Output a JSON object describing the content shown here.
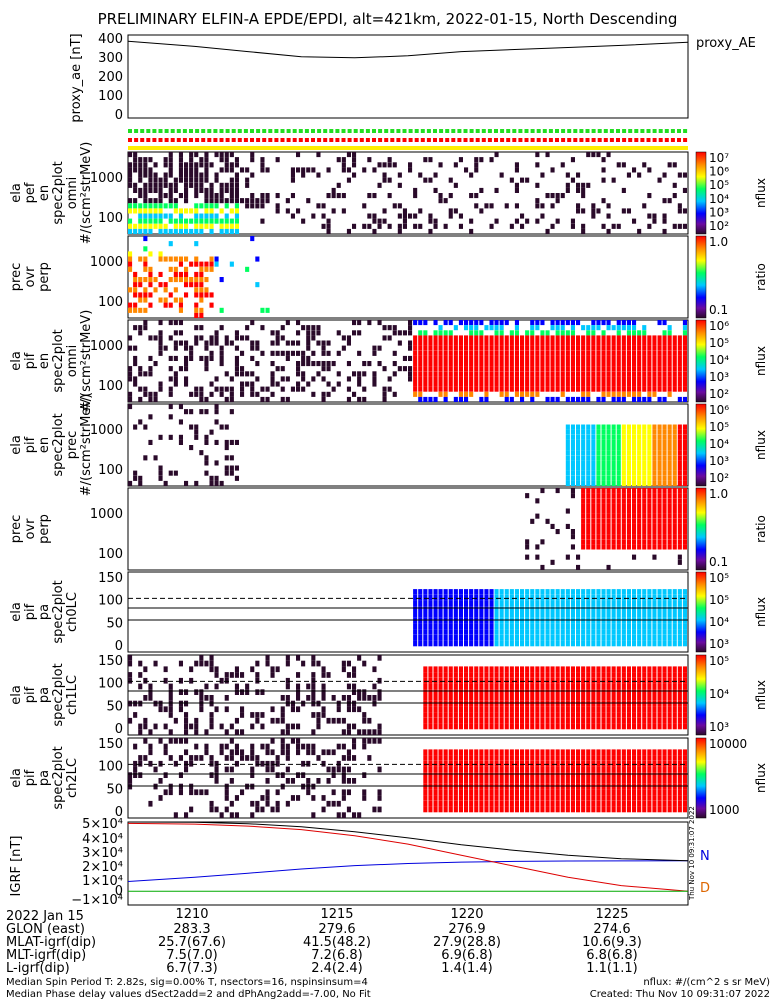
{
  "title": "PRELIMINARY ELFIN-A EPDE/EPDI, alt=421km, 2022-01-15, North Descending",
  "colors": {
    "red": "#ff0000",
    "green": "#22dd22",
    "blue": "#0000dd",
    "yellow": "#ffee00",
    "dark": "#3a0a2a"
  },
  "footer": {
    "line1_left": "Median Spin Period T: 2.82s, sig=0.00% T, nsectors=16, nspinsinsum=4",
    "line2_left": "Median Phase delay values dSect2add=2 and dPhAng2add=-7.00, No Fit",
    "line1_right": "nflux: #/(cm^2 s sr MeV)",
    "line2_right": "Created: Thu Nov 10 09:31:07 2022",
    "side_stamp": "Thu Nov 10 09:31:07 2022"
  },
  "time_axis": {
    "ticks": [
      "1210",
      "1215",
      "1220",
      "1225"
    ],
    "rows": [
      {
        "label": "2022 Jan 15",
        "values": [
          "1210",
          "1215",
          "1220",
          "1225"
        ]
      },
      {
        "label": "GLON (east)",
        "values": [
          "283.3",
          "279.6",
          "276.9",
          "274.6"
        ]
      },
      {
        "label": "MLAT-igrf(dip)",
        "values": [
          "25.7(67.6)",
          "41.5(48.2)",
          "27.9(28.8)",
          "10.6(9.3)"
        ]
      },
      {
        "label": "MLT-igrf(dip)",
        "values": [
          "7.5(7.0)",
          "7.2(6.8)",
          "6.9(6.8)",
          "6.8(6.8)"
        ]
      },
      {
        "label": "L-igrf(dip)",
        "values": [
          "6.7(7.3)",
          "2.4(2.4)",
          "1.4(1.4)",
          "1.1(1.1)"
        ]
      }
    ]
  },
  "chart_data": [
    {
      "type": "line",
      "ylabel": "proxy_ae [nT]",
      "legend": "proxy_AE",
      "yticks": [
        "400",
        "300",
        "200",
        "100",
        "0"
      ],
      "ylim": [
        0,
        400
      ],
      "x": [
        1207.5,
        1210,
        1212,
        1214,
        1216,
        1218,
        1220,
        1222,
        1224,
        1226,
        1228.5
      ],
      "values": [
        370,
        345,
        320,
        295,
        290,
        300,
        320,
        330,
        340,
        350,
        365
      ]
    },
    {
      "type": "heatmap",
      "ylabel_lines": [
        "ela",
        "pef",
        "en",
        "spec2plot",
        "omni",
        "#/(scm²strMeV)"
      ],
      "yticks": [
        "1000",
        "100"
      ],
      "cbar_label": "nflux",
      "cbar_ticks": [
        "10⁷",
        "10⁶",
        "10⁵",
        "10⁴",
        "10³",
        "10²"
      ]
    },
    {
      "type": "heatmap",
      "ylabel_lines": [
        "prec",
        "ovr",
        "perp"
      ],
      "yticks": [
        "1000",
        "100"
      ],
      "cbar_label": "ratio",
      "cbar_ticks": [
        "1.0",
        "0.1"
      ]
    },
    {
      "type": "heatmap",
      "ylabel_lines": [
        "ela",
        "pif",
        "en",
        "spec2plot",
        "omni",
        "#/(scm²strMeV)"
      ],
      "yticks": [
        "1000",
        "100"
      ],
      "cbar_label": "nflux",
      "cbar_ticks": [
        "10⁶",
        "10⁵",
        "10⁴",
        "10³",
        "10²"
      ]
    },
    {
      "type": "heatmap",
      "ylabel_lines": [
        "ela",
        "pif",
        "en",
        "spec2plot",
        "prec",
        "#/(scm²strMeV)"
      ],
      "yticks": [
        "1000",
        "100"
      ],
      "cbar_label": "nflux",
      "cbar_ticks": [
        "10⁶",
        "10⁵",
        "10⁴",
        "10³",
        "10²"
      ]
    },
    {
      "type": "heatmap",
      "ylabel_lines": [
        "prec",
        "ovr",
        "perp"
      ],
      "yticks": [
        "1000",
        "100"
      ],
      "cbar_label": "ratio",
      "cbar_ticks": [
        "1.0",
        "0.1"
      ]
    },
    {
      "type": "heatmap",
      "ylabel_lines": [
        "ela",
        "pif",
        "pa",
        "spec2plot",
        "ch0LC"
      ],
      "yticks": [
        "150",
        "100",
        "50",
        "0"
      ],
      "cbar_label": "nflux",
      "cbar_ticks": [
        "10⁵",
        "10⁵",
        "10⁴",
        "10³"
      ]
    },
    {
      "type": "heatmap",
      "ylabel_lines": [
        "ela",
        "pif",
        "pa",
        "spec2plot",
        "ch1LC"
      ],
      "yticks": [
        "150",
        "100",
        "50",
        "0"
      ],
      "cbar_label": "nflux",
      "cbar_ticks": [
        "10⁵",
        "10⁴",
        "10³"
      ]
    },
    {
      "type": "heatmap",
      "ylabel_lines": [
        "ela",
        "pif",
        "pa",
        "spec2plot",
        "ch2LC"
      ],
      "yticks": [
        "150",
        "100",
        "50",
        "0"
      ],
      "cbar_label": "nflux",
      "cbar_ticks": [
        "10000",
        "1000"
      ]
    },
    {
      "type": "line",
      "ylabel": "IGRF [nT]",
      "yticks": [
        "5×10⁴",
        "4×10⁴",
        "3×10⁴",
        "2×10⁴",
        "1×10⁴",
        "0",
        "−1×10⁴"
      ],
      "ylim": [
        -10000,
        50000
      ],
      "x": [
        1207.5,
        1210,
        1212,
        1214,
        1216,
        1218,
        1220,
        1222,
        1224,
        1226,
        1228.5
      ],
      "series": [
        {
          "name": "N",
          "color": "#0000dd",
          "values": [
            7000,
            10000,
            13000,
            16000,
            18500,
            20000,
            21000,
            21500,
            21800,
            21900,
            22000
          ]
        },
        {
          "name": "D",
          "color": "#dd0000",
          "values": [
            49000,
            48500,
            47000,
            44500,
            40000,
            34000,
            26000,
            18000,
            10000,
            4000,
            0
          ]
        },
        {
          "name": "",
          "color": "#000000",
          "values": [
            50000,
            49800,
            48800,
            46500,
            43000,
            38500,
            33500,
            29500,
            26000,
            23500,
            22000
          ]
        },
        {
          "name": "",
          "color": "#00aa00",
          "values": [
            0,
            0,
            0,
            0,
            0,
            0,
            0,
            0,
            0,
            0,
            0
          ]
        }
      ]
    }
  ]
}
